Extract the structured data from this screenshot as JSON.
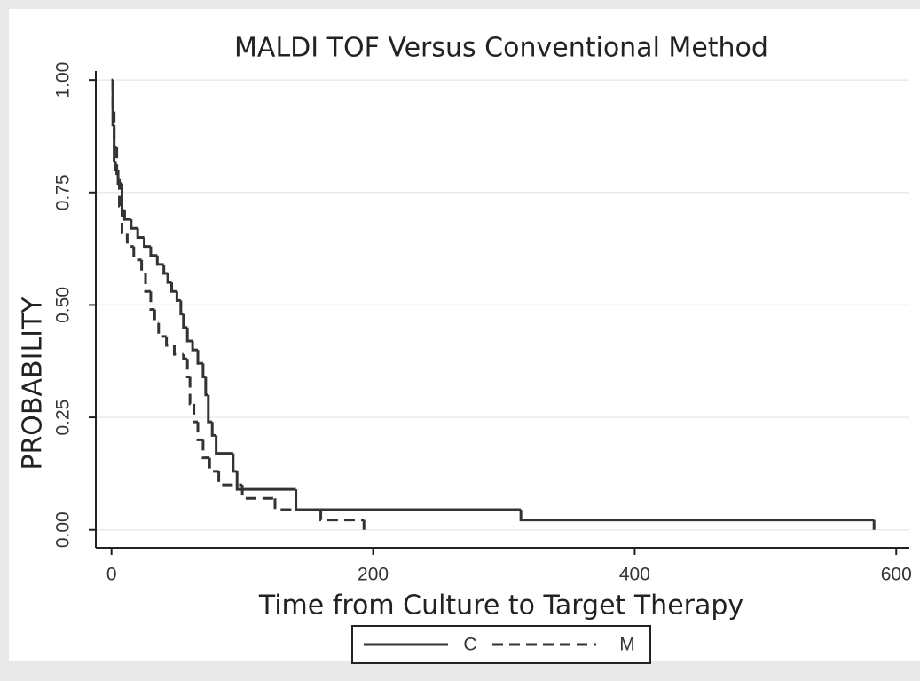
{
  "chart_data": {
    "type": "line",
    "step": true,
    "title": "MALDI TOF Versus Conventional Method",
    "x_label": "Time from Culture to Target Therapy",
    "y_label": "PROBABILITY",
    "xlim": [
      -12,
      610
    ],
    "ylim": [
      -0.04,
      1.02
    ],
    "xticks": [
      0,
      200,
      400,
      600
    ],
    "yticks": [
      {
        "value": 0,
        "label": "0.00"
      },
      {
        "value": 0.25,
        "label": "0.25"
      },
      {
        "value": 0.5,
        "label": "0.50"
      },
      {
        "value": 0.75,
        "label": "0.75"
      },
      {
        "value": 1,
        "label": "1.00"
      }
    ],
    "grid": true,
    "series": [
      {
        "name": "C",
        "color": "#333333",
        "dash": false,
        "x": [
          0,
          1,
          2,
          3,
          5,
          8,
          10,
          15,
          20,
          25,
          30,
          35,
          40,
          43,
          46,
          50,
          53,
          55,
          58,
          62,
          66,
          70,
          72,
          74,
          77,
          80,
          93,
          96,
          141,
          313,
          583
        ],
        "values": [
          1.0,
          0.9,
          0.82,
          0.8,
          0.77,
          0.71,
          0.69,
          0.67,
          0.65,
          0.63,
          0.61,
          0.59,
          0.57,
          0.55,
          0.53,
          0.51,
          0.48,
          0.45,
          0.42,
          0.4,
          0.37,
          0.34,
          0.3,
          0.24,
          0.21,
          0.17,
          0.13,
          0.09,
          0.045,
          0.022,
          0
        ]
      },
      {
        "name": "M",
        "color": "#333333",
        "dash": true,
        "x": [
          0,
          1,
          2,
          4,
          6,
          8,
          12,
          17,
          23,
          26,
          30,
          33,
          36,
          42,
          48,
          55,
          58,
          60,
          63,
          66,
          70,
          75,
          82,
          100,
          125,
          160,
          193
        ],
        "values": [
          1.0,
          0.93,
          0.85,
          0.78,
          0.72,
          0.66,
          0.63,
          0.6,
          0.57,
          0.53,
          0.49,
          0.46,
          0.43,
          0.41,
          0.39,
          0.38,
          0.34,
          0.28,
          0.24,
          0.2,
          0.16,
          0.13,
          0.1,
          0.07,
          0.045,
          0.022,
          0
        ]
      }
    ]
  }
}
